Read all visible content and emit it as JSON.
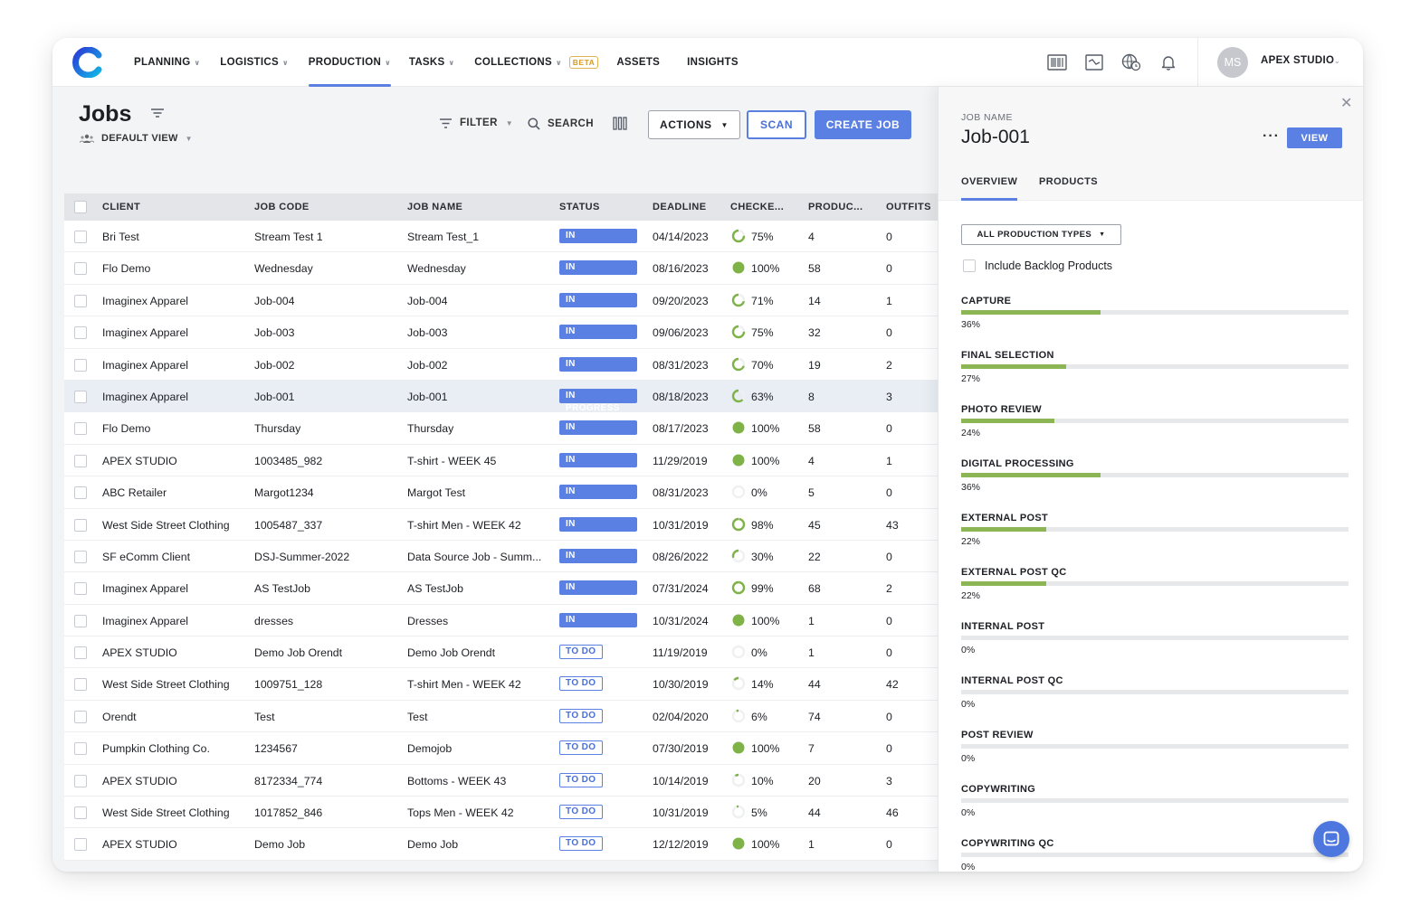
{
  "nav": {
    "items": [
      {
        "label": "PLANNING",
        "chevron": true
      },
      {
        "label": "LOGISTICS",
        "chevron": true
      },
      {
        "label": "PRODUCTION",
        "chevron": true,
        "active": true
      },
      {
        "label": "TASKS",
        "chevron": true
      },
      {
        "label": "COLLECTIONS",
        "chevron": true,
        "badge": "BETA"
      },
      {
        "label": "ASSETS",
        "chevron": false
      },
      {
        "label": "INSIGHTS",
        "chevron": false
      }
    ],
    "icons": [
      "barcode-icon",
      "chart-icon",
      "globe-clock-icon",
      "bell-icon"
    ]
  },
  "user": {
    "initials": "MS",
    "name": "APEX STUDIO"
  },
  "header": {
    "title": "Jobs",
    "view": "DEFAULT VIEW",
    "filter_label": "FILTER",
    "search_label": "SEARCH",
    "actions_label": "ACTIONS",
    "scan_label": "SCAN",
    "create_label": "CREATE JOB"
  },
  "table": {
    "columns": [
      "CLIENT",
      "JOB CODE",
      "JOB NAME",
      "STATUS",
      "DEADLINE",
      "CHECKE...",
      "PRODUC...",
      "OUTFITS"
    ],
    "rows": [
      {
        "client": "Bri Test",
        "code": "Stream Test 1",
        "name": "Stream Test_1",
        "status": "IN PROGRESS",
        "deadline": "04/14/2023",
        "checked": 75,
        "checked_label": "75%",
        "products": "4",
        "outfits": "0"
      },
      {
        "client": "Flo Demo",
        "code": "Wednesday",
        "name": "Wednesday",
        "status": "IN PROGRESS",
        "deadline": "08/16/2023",
        "checked": 100,
        "checked_label": "100%",
        "products": "58",
        "outfits": "0"
      },
      {
        "client": "Imaginex Apparel",
        "code": "Job-004",
        "name": "Job-004",
        "status": "IN PROGRESS",
        "deadline": "09/20/2023",
        "checked": 71,
        "checked_label": "71%",
        "products": "14",
        "outfits": "1"
      },
      {
        "client": "Imaginex Apparel",
        "code": "Job-003",
        "name": "Job-003",
        "status": "IN PROGRESS",
        "deadline": "09/06/2023",
        "checked": 75,
        "checked_label": "75%",
        "products": "32",
        "outfits": "0"
      },
      {
        "client": "Imaginex Apparel",
        "code": "Job-002",
        "name": "Job-002",
        "status": "IN PROGRESS",
        "deadline": "08/31/2023",
        "checked": 70,
        "checked_label": "70%",
        "products": "19",
        "outfits": "2"
      },
      {
        "client": "Imaginex Apparel",
        "code": "Job-001",
        "name": "Job-001",
        "status": "IN PROGRESS",
        "deadline": "08/18/2023",
        "checked": 63,
        "checked_label": "63%",
        "products": "8",
        "outfits": "3",
        "selected": true
      },
      {
        "client": "Flo Demo",
        "code": "Thursday",
        "name": "Thursday",
        "status": "IN PROGRESS",
        "deadline": "08/17/2023",
        "checked": 100,
        "checked_label": "100%",
        "products": "58",
        "outfits": "0"
      },
      {
        "client": "APEX STUDIO",
        "code": "1003485_982",
        "name": "T-shirt - WEEK 45",
        "status": "IN PROGRESS",
        "deadline": "11/29/2019",
        "checked": 100,
        "checked_label": "100%",
        "products": "4",
        "outfits": "1"
      },
      {
        "client": "ABC Retailer",
        "code": "Margot1234",
        "name": "Margot Test",
        "status": "IN PROGRESS",
        "deadline": "08/31/2023",
        "checked": 0,
        "checked_label": "0%",
        "products": "5",
        "outfits": "0"
      },
      {
        "client": "West Side Street Clothing",
        "code": "1005487_337",
        "name": "T-shirt Men - WEEK 42",
        "status": "IN PROGRESS",
        "deadline": "10/31/2019",
        "checked": 98,
        "checked_label": "98%",
        "products": "45",
        "outfits": "43"
      },
      {
        "client": "SF eComm Client",
        "code": "DSJ-Summer-2022",
        "name": "Data Source Job - Summ...",
        "status": "IN PROGRESS",
        "deadline": "08/26/2022",
        "checked": 30,
        "checked_label": "30%",
        "products": "22",
        "outfits": "0"
      },
      {
        "client": "Imaginex Apparel",
        "code": "AS TestJob",
        "name": "AS TestJob",
        "status": "IN PROGRESS",
        "deadline": "07/31/2024",
        "checked": 99,
        "checked_label": "99%",
        "products": "68",
        "outfits": "2"
      },
      {
        "client": "Imaginex Apparel",
        "code": "dresses",
        "name": "Dresses",
        "status": "IN PROGRESS",
        "deadline": "10/31/2024",
        "checked": 100,
        "checked_label": "100%",
        "products": "1",
        "outfits": "0"
      },
      {
        "client": "APEX STUDIO",
        "code": "Demo Job Orendt",
        "name": "Demo Job Orendt",
        "status": "TO DO",
        "deadline": "11/19/2019",
        "checked": 0,
        "checked_label": "0%",
        "products": "1",
        "outfits": "0"
      },
      {
        "client": "West Side Street Clothing",
        "code": "1009751_128",
        "name": "T-shirt Men - WEEK 42",
        "status": "TO DO",
        "deadline": "10/30/2019",
        "checked": 14,
        "checked_label": "14%",
        "products": "44",
        "outfits": "42"
      },
      {
        "client": "Orendt",
        "code": "Test",
        "name": "Test",
        "status": "TO DO",
        "deadline": "02/04/2020",
        "checked": 6,
        "checked_label": "6%",
        "products": "74",
        "outfits": "0"
      },
      {
        "client": "Pumpkin Clothing Co.",
        "code": "1234567",
        "name": "Demojob",
        "status": "TO DO",
        "deadline": "07/30/2019",
        "checked": 100,
        "checked_label": "100%",
        "products": "7",
        "outfits": "0"
      },
      {
        "client": "APEX STUDIO",
        "code": "8172334_774",
        "name": "Bottoms - WEEK 43",
        "status": "TO DO",
        "deadline": "10/14/2019",
        "checked": 10,
        "checked_label": "10%",
        "products": "20",
        "outfits": "3"
      },
      {
        "client": "West Side Street Clothing",
        "code": "1017852_846",
        "name": "Tops Men - WEEK 42",
        "status": "TO DO",
        "deadline": "10/31/2019",
        "checked": 5,
        "checked_label": "5%",
        "products": "44",
        "outfits": "46"
      },
      {
        "client": "APEX STUDIO",
        "code": "Demo Job",
        "name": "Demo Job",
        "status": "TO DO",
        "deadline": "12/12/2019",
        "checked": 100,
        "checked_label": "100%",
        "products": "1",
        "outfits": "0"
      }
    ]
  },
  "panel": {
    "job_name_label": "JOB NAME",
    "job_name": "Job-001",
    "view_label": "VIEW",
    "tabs": [
      {
        "label": "OVERVIEW",
        "active": true
      },
      {
        "label": "PRODUCTS",
        "active": false
      }
    ],
    "production_type": "ALL PRODUCTION TYPES",
    "backlog_label": "Include Backlog Products",
    "stages": [
      {
        "name": "CAPTURE",
        "percent": 36,
        "label": "36%"
      },
      {
        "name": "FINAL SELECTION",
        "percent": 27,
        "label": "27%"
      },
      {
        "name": "PHOTO REVIEW",
        "percent": 24,
        "label": "24%"
      },
      {
        "name": "DIGITAL PROCESSING",
        "percent": 36,
        "label": "36%"
      },
      {
        "name": "EXTERNAL POST",
        "percent": 22,
        "label": "22%"
      },
      {
        "name": "EXTERNAL POST QC",
        "percent": 22,
        "label": "22%"
      },
      {
        "name": "INTERNAL POST",
        "percent": 0,
        "label": "0%"
      },
      {
        "name": "INTERNAL POST QC",
        "percent": 0,
        "label": "0%"
      },
      {
        "name": "POST REVIEW",
        "percent": 0,
        "label": "0%"
      },
      {
        "name": "COPYWRITING",
        "percent": 0,
        "label": "0%"
      },
      {
        "name": "COPYWRITING QC",
        "percent": 0,
        "label": "0%"
      }
    ]
  },
  "colors": {
    "accent": "#5b80e3",
    "progress": "#8cb653",
    "complete": "#7fb347"
  }
}
